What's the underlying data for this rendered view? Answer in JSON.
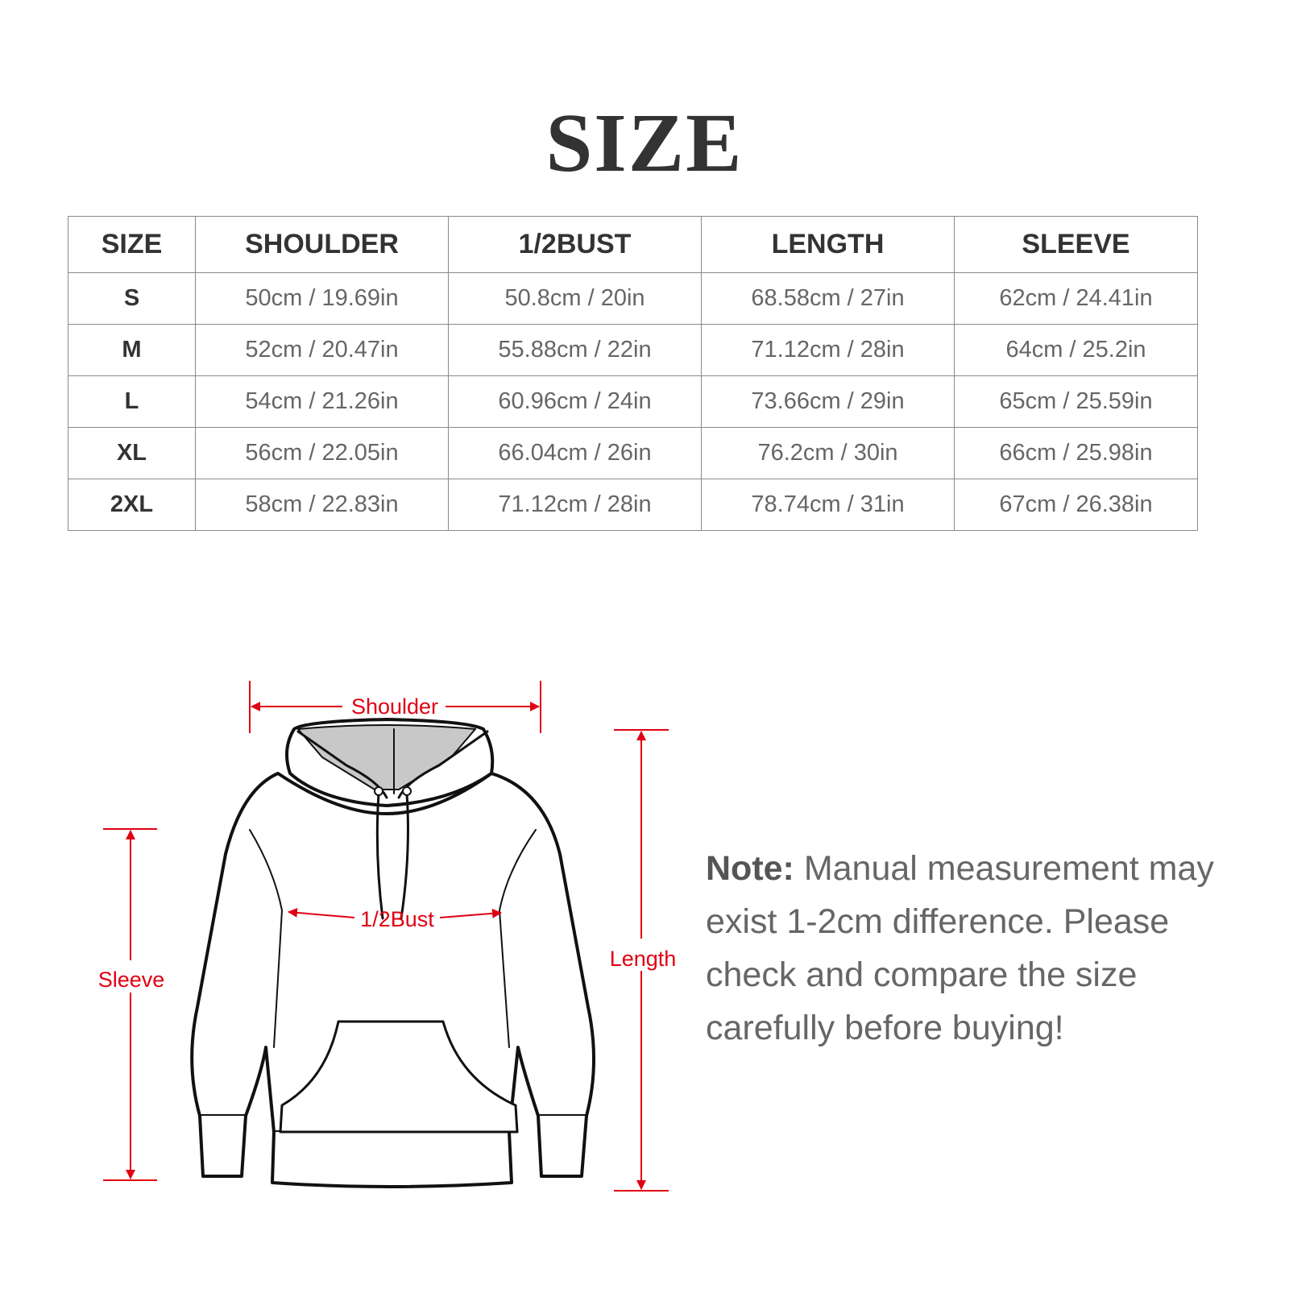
{
  "title": "SIZE",
  "table": {
    "headers": [
      "SIZE",
      "SHOULDER",
      "1/2BUST",
      "LENGTH",
      "SLEEVE"
    ],
    "rows": [
      [
        "S",
        "50cm / 19.69in",
        "50.8cm / 20in",
        "68.58cm / 27in",
        "62cm / 24.41in"
      ],
      [
        "M",
        "52cm / 20.47in",
        "55.88cm / 22in",
        "71.12cm / 28in",
        "64cm / 25.2in"
      ],
      [
        "L",
        "54cm / 21.26in",
        "60.96cm / 24in",
        "73.66cm / 29in",
        "65cm / 25.59in"
      ],
      [
        "XL",
        "56cm / 22.05in",
        "66.04cm / 26in",
        "76.2cm / 30in",
        "66cm / 25.98in"
      ],
      [
        "2XL",
        "58cm / 22.83in",
        "71.12cm / 28in",
        "78.74cm / 31in",
        "67cm / 26.38in"
      ]
    ]
  },
  "diagram": {
    "labels": {
      "shoulder": "Shoulder",
      "bust": "1/2Bust",
      "length": "Length",
      "sleeve": "Sleeve"
    },
    "accent_color": "#e00012"
  },
  "note": {
    "label": "Note:",
    "text": " Manual measurement may exist 1-2cm difference. Please check and compare the size carefully before buying!"
  }
}
